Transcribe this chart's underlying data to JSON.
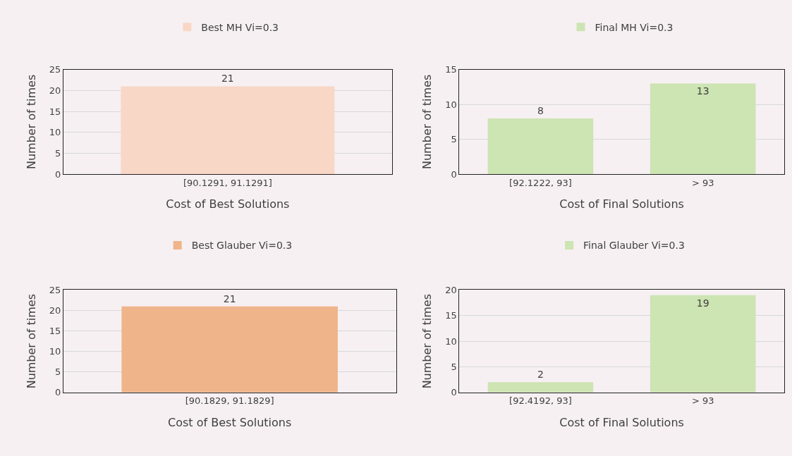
{
  "chart_data": [
    {
      "type": "bar",
      "categories": [
        "[90.1291, 91.1291]"
      ],
      "series": [
        {
          "name": "Best MH Vi=0.3",
          "color": "#f8d7c6",
          "values": [
            21
          ]
        }
      ],
      "xlabel": "Cost of Best Solutions",
      "ylabel": "Number of times",
      "ylim": [
        0,
        25
      ],
      "yticks": [
        0,
        5,
        10,
        15,
        20,
        25
      ],
      "grid": "y",
      "legend": "top",
      "data_labels": true
    },
    {
      "type": "bar",
      "categories": [
        "[92.1222, 93]",
        "> 93"
      ],
      "series": [
        {
          "name": "Final MH Vi=0.3",
          "color": "#cde4b3",
          "values": [
            8,
            13
          ]
        }
      ],
      "xlabel": "Cost of Final Solutions",
      "ylabel": "Number of times",
      "ylim": [
        0,
        15
      ],
      "yticks": [
        0,
        5,
        10,
        15
      ],
      "grid": "y",
      "legend": "top",
      "data_labels": true
    },
    {
      "type": "bar",
      "categories": [
        "[90.1829, 91.1829]"
      ],
      "series": [
        {
          "name": "Best Glauber Vi=0.3",
          "color": "#f0b48a",
          "values": [
            21
          ]
        }
      ],
      "xlabel": "Cost of Best Solutions",
      "ylabel": "Number of times",
      "ylim": [
        0,
        25
      ],
      "yticks": [
        0,
        5,
        10,
        15,
        20,
        25
      ],
      "grid": "y",
      "legend": "top",
      "data_labels": true
    },
    {
      "type": "bar",
      "categories": [
        "[92.4192, 93]",
        "> 93"
      ],
      "series": [
        {
          "name": "Final Glauber Vi=0.3",
          "color": "#cde4b3",
          "values": [
            2,
            19
          ]
        }
      ],
      "xlabel": "Cost of Final Solutions",
      "ylabel": "Number of times",
      "ylim": [
        0,
        20
      ],
      "yticks": [
        0,
        5,
        10,
        15,
        20
      ],
      "grid": "y",
      "legend": "top",
      "data_labels": true
    }
  ]
}
